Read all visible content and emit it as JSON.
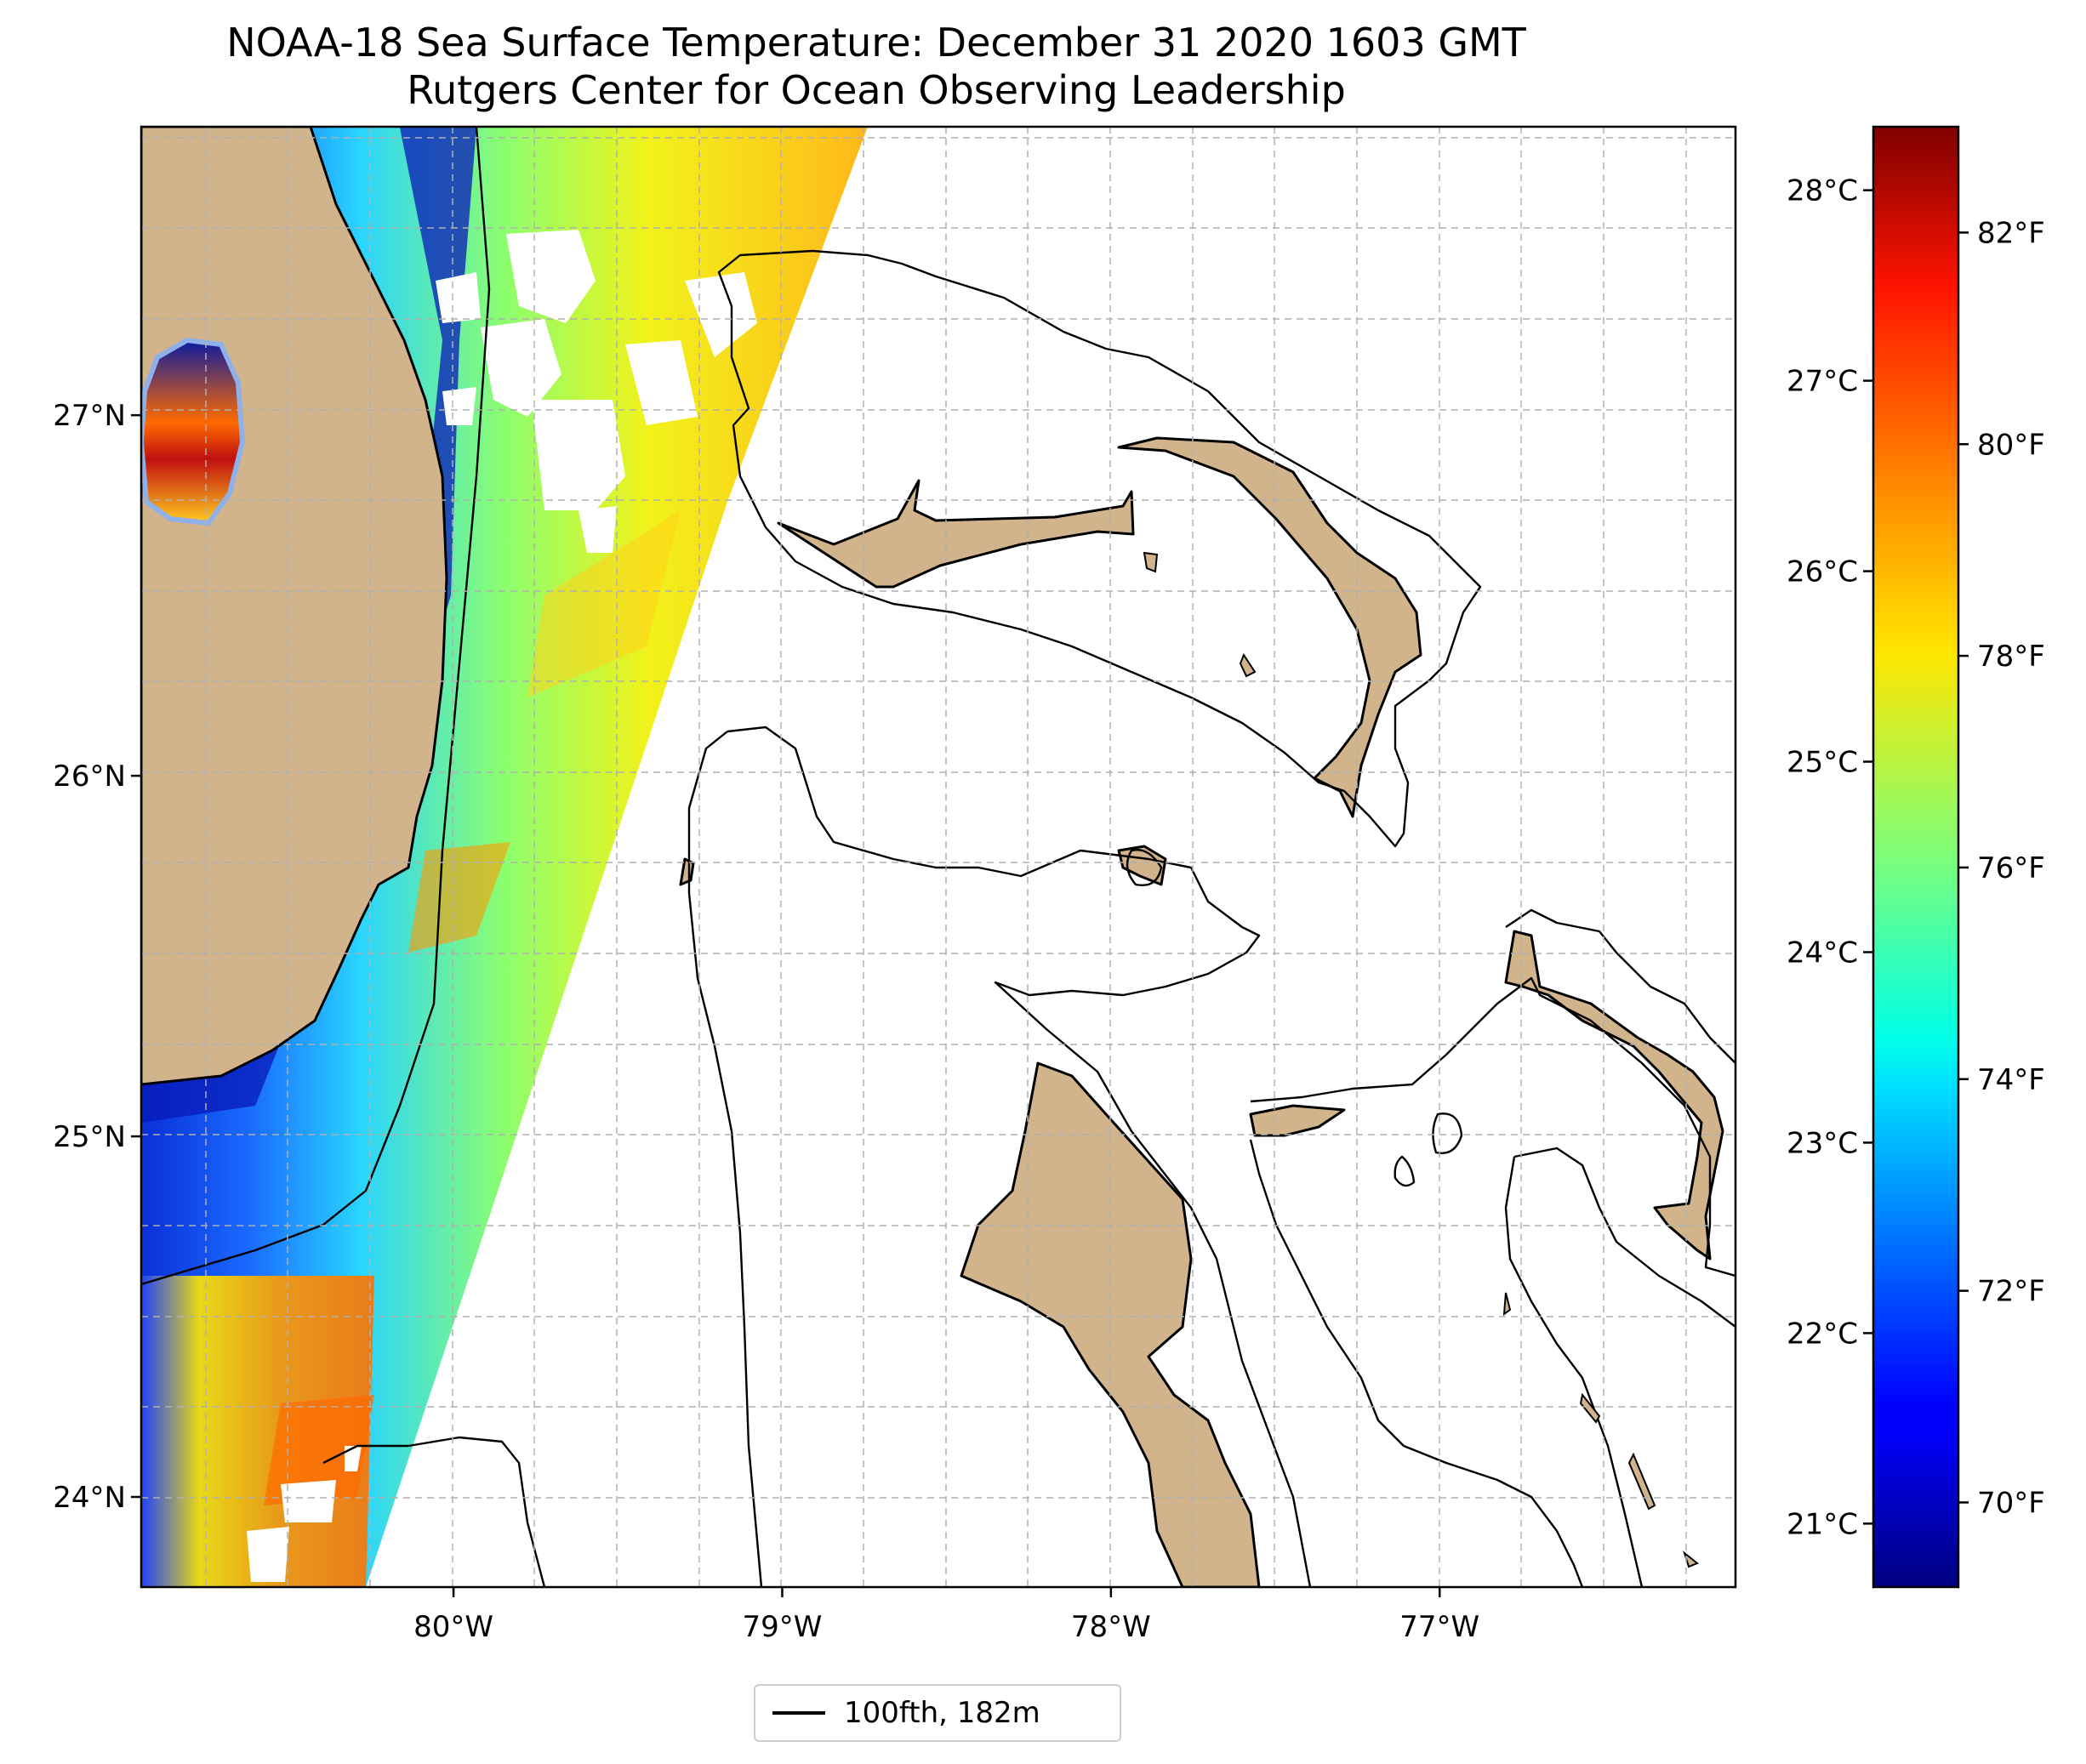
{
  "title": {
    "line1": "NOAA-18 Sea Surface Temperature: December 31 2020 1603 GMT",
    "line2": "Rutgers Center for Ocean Observing Leadership"
  },
  "map": {
    "extent": {
      "lon": [
        -80.95,
        -76.1
      ],
      "lat": [
        23.75,
        27.8
      ]
    },
    "land_color": "#d2b48c",
    "gridlines": true,
    "lat_ticks": [
      {
        "value": 27,
        "label": "27°N"
      },
      {
        "value": 26,
        "label": "26°N"
      },
      {
        "value": 25,
        "label": "25°N"
      },
      {
        "value": 24,
        "label": "24°N"
      }
    ],
    "lon_ticks": [
      {
        "value": -80,
        "label": "80°W"
      },
      {
        "value": -79,
        "label": "79°W"
      },
      {
        "value": -78,
        "label": "78°W"
      },
      {
        "value": -77,
        "label": "77°W"
      }
    ],
    "sst_swath": {
      "units": "°F",
      "range": [
        69,
        83
      ],
      "typical_values": {
        "nearshore_cool": 70.5,
        "gulf_stream_warm": 79.5
      }
    }
  },
  "colorbar": {
    "colormap": "jet",
    "range_f": [
      69.2,
      83.0
    ],
    "celsius_ticks": [
      {
        "value": 28,
        "label": "28°C"
      },
      {
        "value": 27,
        "label": "27°C"
      },
      {
        "value": 26,
        "label": "26°C"
      },
      {
        "value": 25,
        "label": "25°C"
      },
      {
        "value": 24,
        "label": "24°C"
      },
      {
        "value": 23,
        "label": "23°C"
      },
      {
        "value": 22,
        "label": "22°C"
      },
      {
        "value": 21,
        "label": "21°C"
      }
    ],
    "fahrenheit_ticks": [
      {
        "value": 82,
        "label": "82°F"
      },
      {
        "value": 80,
        "label": "80°F"
      },
      {
        "value": 78,
        "label": "78°F"
      },
      {
        "value": 76,
        "label": "76°F"
      },
      {
        "value": 74,
        "label": "74°F"
      },
      {
        "value": 72,
        "label": "72°F"
      },
      {
        "value": 70,
        "label": "70°F"
      }
    ]
  },
  "legend": {
    "label": "100fth, 182m"
  }
}
